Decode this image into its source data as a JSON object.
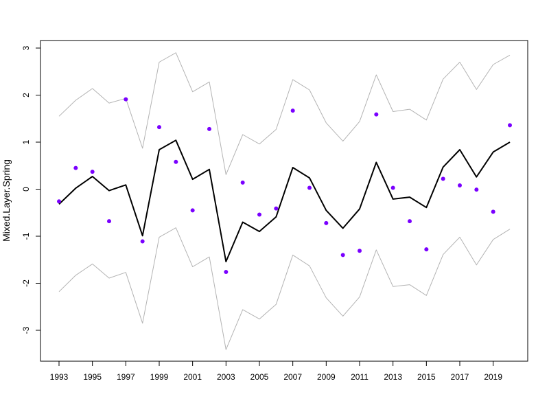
{
  "chart_data": {
    "type": "line",
    "title": "",
    "xlabel": "",
    "ylabel": "Mixed.Layer.Spring",
    "xlim": [
      1993,
      2020
    ],
    "ylim": [
      -3.6,
      3.15
    ],
    "grid": false,
    "x": [
      1993,
      1994,
      1995,
      1996,
      1997,
      1998,
      1999,
      2000,
      2001,
      2002,
      2003,
      2004,
      2005,
      2006,
      2007,
      2008,
      2009,
      2010,
      2011,
      2012,
      2013,
      2014,
      2015,
      2016,
      2017,
      2018,
      2019,
      2020
    ],
    "x_ticks": [
      1993,
      1995,
      1997,
      1999,
      2001,
      2003,
      2005,
      2007,
      2009,
      2011,
      2013,
      2015,
      2017,
      2019
    ],
    "x_tick_labels": [
      "1993",
      "1995",
      "1997",
      "1999",
      "2001",
      "2003",
      "2005",
      "2007",
      "2009",
      "2011",
      "2013",
      "2015",
      "2017",
      "2019"
    ],
    "y_ticks": [
      -3,
      -2,
      -1,
      0,
      1,
      2,
      3
    ],
    "y_tick_labels": [
      "-3",
      "-2",
      "-1",
      "0",
      "1",
      "2",
      "3"
    ],
    "series": [
      {
        "kind": "line",
        "color": "#000000",
        "values": [
          -0.32,
          0.02,
          0.27,
          -0.03,
          0.09,
          -0.99,
          0.84,
          1.04,
          0.21,
          0.42,
          -1.54,
          -0.7,
          -0.9,
          -0.59,
          0.46,
          0.24,
          -0.45,
          -0.83,
          -0.42,
          0.57,
          -0.21,
          -0.17,
          -0.39,
          0.47,
          0.84,
          0.26,
          0.79,
          1.0
        ]
      },
      {
        "kind": "line",
        "color": "#b3b3b3",
        "values": [
          1.55,
          1.89,
          2.14,
          1.83,
          1.93,
          0.87,
          2.7,
          2.9,
          2.07,
          2.28,
          0.31,
          1.16,
          0.96,
          1.27,
          2.33,
          2.11,
          1.41,
          1.02,
          1.44,
          2.43,
          1.65,
          1.7,
          1.47,
          2.34,
          2.7,
          2.12,
          2.65,
          2.85
        ]
      },
      {
        "kind": "line",
        "color": "#b3b3b3",
        "values": [
          -2.18,
          -1.83,
          -1.59,
          -1.89,
          -1.77,
          -2.85,
          -1.02,
          -0.82,
          -1.65,
          -1.44,
          -3.41,
          -2.56,
          -2.76,
          -2.45,
          -1.4,
          -1.63,
          -2.31,
          -2.7,
          -2.29,
          -1.29,
          -2.07,
          -2.03,
          -2.26,
          -1.39,
          -1.02,
          -1.61,
          -1.07,
          -0.85
        ]
      },
      {
        "kind": "points",
        "color": "#7a00ff",
        "values": [
          -0.26,
          0.45,
          0.37,
          -0.68,
          1.91,
          -1.11,
          1.32,
          0.58,
          -0.45,
          1.28,
          -1.76,
          0.14,
          -0.54,
          -0.41,
          1.67,
          0.03,
          -0.72,
          -1.4,
          -1.31,
          1.59,
          0.03,
          -0.68,
          -1.28,
          0.22,
          0.08,
          -0.01,
          -0.48,
          1.36
        ]
      }
    ]
  }
}
